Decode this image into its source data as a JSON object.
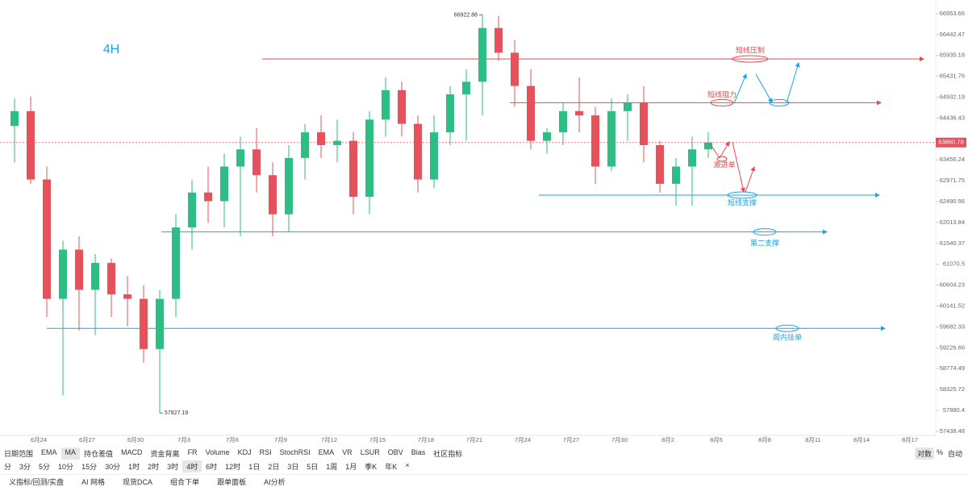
{
  "chart_data": {
    "type": "candlestick",
    "label": "4H",
    "log_scale": true,
    "up_color": "#2dbd85",
    "down_color": "#e5525b",
    "ylim": [
      57353,
      67289
    ],
    "yticks": [
      66953.66,
      66442.47,
      65935.18,
      65431.76,
      64932.19,
      64436.43,
      63456.24,
      62971.75,
      62490.96,
      62013.84,
      61540.37,
      61070.5,
      60604.23,
      60141.52,
      59682.33,
      59226.66,
      58774.49,
      58325.72,
      57880.4,
      57438.48
    ],
    "xticks": [
      "6月24",
      "6月27",
      "6月30",
      "7月3",
      "7月6",
      "7月9",
      "7月12",
      "7月15",
      "7月18",
      "7月21",
      "7月24",
      "7月27",
      "7月30",
      "8月2",
      "8月5",
      "8月8",
      "8月11",
      "8月14",
      "8月17"
    ],
    "open": [
      64250,
      64600,
      63000,
      60300,
      61400,
      60500,
      61100,
      60400,
      60300,
      59200,
      60300,
      61900,
      62700,
      62500,
      63300,
      63700,
      63100,
      62200,
      63500,
      64100,
      63800,
      63900,
      62600,
      64400,
      65100,
      64300,
      63000,
      64100,
      65000,
      65300,
      66600,
      66000,
      65200,
      63900,
      64100,
      64600,
      64500,
      63300,
      64600,
      64800,
      63800,
      62900,
      63300,
      63700
    ],
    "high": [
      64900,
      64950,
      63300,
      61600,
      61700,
      61300,
      61200,
      60800,
      60600,
      60500,
      62200,
      63000,
      63300,
      63600,
      64000,
      64200,
      63400,
      63800,
      64300,
      64500,
      64400,
      64100,
      64600,
      65400,
      65300,
      64500,
      64500,
      65200,
      65600,
      66922.88,
      66900,
      66300,
      65600,
      64200,
      64800,
      65400,
      64700,
      64900,
      65000,
      65200,
      63900,
      63500,
      64000,
      64100
    ],
    "low": [
      63400,
      62900,
      59900,
      58200,
      59600,
      59500,
      59900,
      59700,
      58900,
      57827.19,
      59900,
      61400,
      62000,
      61900,
      61700,
      62700,
      61700,
      61800,
      63000,
      63500,
      63400,
      62200,
      62200,
      64000,
      64000,
      62700,
      62800,
      63800,
      63900,
      64500,
      65800,
      64700,
      63700,
      63600,
      63800,
      64100,
      62900,
      63200,
      63900,
      63400,
      62700,
      62400,
      62400,
      63500
    ],
    "close": [
      64600,
      63000,
      60300,
      61400,
      60500,
      61100,
      60400,
      60300,
      59200,
      60300,
      61900,
      62700,
      62500,
      63300,
      63700,
      63100,
      62200,
      63500,
      64100,
      63800,
      63900,
      62600,
      64400,
      65100,
      64300,
      63000,
      64100,
      65000,
      65300,
      66600,
      66000,
      65200,
      63900,
      64100,
      64600,
      64500,
      63300,
      64600,
      64800,
      63800,
      62900,
      63300,
      63700,
      63860.78
    ],
    "max_label": 66922.88,
    "min_label": 57827.19,
    "last_price": 63860.78,
    "last_price_color": "#e5525b",
    "levels": [
      {
        "label": "短线压制",
        "value": 65850,
        "color": "#e8474c"
      },
      {
        "label": "短线阻力",
        "value": 64800,
        "color": "#e8474c"
      },
      {
        "label": "短线支撑",
        "value": 62640,
        "color": "#1aa3e8"
      },
      {
        "label": "第二支撑",
        "value": 61800,
        "color": "#1aa3e8"
      },
      {
        "label": "阁内挂单",
        "value": 59650,
        "color": "#1aa3e8"
      }
    ],
    "note": "激进单"
  },
  "toolbar": {
    "indicators": [
      "日期范围",
      "EMA",
      "MA",
      "持仓差值",
      "MACD",
      "资金背离",
      "FR",
      "Volume",
      "KDJ",
      "RSI",
      "StochRSI",
      "EMA",
      "VR",
      "LSUR",
      "OBV",
      "Bias",
      "社区指标"
    ],
    "scale_options": [
      "对数",
      "%",
      "自动"
    ],
    "intervals": [
      "分",
      "3分",
      "5分",
      "10分",
      "15分",
      "30分",
      "1时",
      "2时",
      "3时",
      "4时",
      "6时",
      "12时",
      "1日",
      "2日",
      "3日",
      "5日",
      "1周",
      "1月",
      "季K",
      "年K",
      "×"
    ],
    "tools": [
      "义指标/回测/实盘",
      "AI 网格",
      "现货DCA",
      "组合下单",
      "跟单面板",
      "AI分析"
    ]
  }
}
